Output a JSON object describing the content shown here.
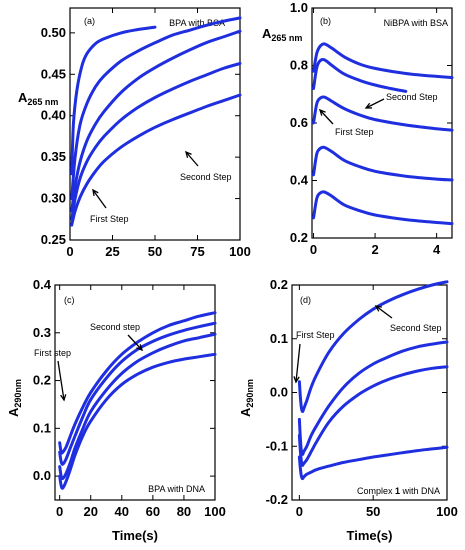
{
  "colors": {
    "series": "#1f2fe0",
    "axis": "#000000"
  },
  "chart_data": [
    {
      "id": "a",
      "type": "line",
      "panel_label": "(a)",
      "title": "BPA with BSA",
      "xlabel": "",
      "ylabel": "A 265 nm",
      "ylabel_main": "A",
      "ylabel_sub": "265 nm",
      "xlim": [
        0,
        100
      ],
      "ylim": [
        0.25,
        0.53
      ],
      "xticks": [
        0,
        25,
        50,
        75,
        100
      ],
      "yticks": [
        0.25,
        0.3,
        0.35,
        0.4,
        0.45,
        0.5
      ],
      "ytick_labels": [
        "0.25",
        "0.30",
        "0.35",
        "0.40",
        "0.45",
        "0.50"
      ],
      "series": [
        {
          "x": [
            1,
            2,
            4,
            7,
            10,
            15,
            20,
            30,
            40,
            50
          ],
          "y": [
            0.33,
            0.39,
            0.43,
            0.46,
            0.475,
            0.487,
            0.493,
            0.5,
            0.504,
            0.507
          ]
        },
        {
          "x": [
            1,
            3,
            6,
            10,
            15,
            20,
            30,
            40,
            50,
            60,
            70,
            80,
            90,
            100
          ],
          "y": [
            0.3,
            0.35,
            0.39,
            0.415,
            0.435,
            0.448,
            0.466,
            0.478,
            0.488,
            0.497,
            0.503,
            0.509,
            0.514,
            0.518
          ]
        },
        {
          "x": [
            1,
            3,
            6,
            10,
            15,
            20,
            30,
            40,
            50,
            60,
            70,
            80,
            90,
            100
          ],
          "y": [
            0.285,
            0.315,
            0.345,
            0.37,
            0.39,
            0.405,
            0.428,
            0.445,
            0.458,
            0.469,
            0.479,
            0.488,
            0.495,
            0.502
          ]
        },
        {
          "x": [
            1,
            3,
            6,
            10,
            15,
            20,
            30,
            40,
            50,
            60,
            70,
            80,
            90,
            100
          ],
          "y": [
            0.275,
            0.3,
            0.325,
            0.345,
            0.362,
            0.375,
            0.395,
            0.41,
            0.422,
            0.432,
            0.441,
            0.449,
            0.457,
            0.463
          ]
        },
        {
          "x": [
            1,
            3,
            6,
            10,
            15,
            20,
            30,
            40,
            50,
            60,
            70,
            80,
            90,
            100
          ],
          "y": [
            0.268,
            0.285,
            0.302,
            0.318,
            0.333,
            0.345,
            0.362,
            0.375,
            0.386,
            0.395,
            0.403,
            0.411,
            0.418,
            0.425
          ]
        }
      ],
      "annotations": [
        {
          "text": "First Step",
          "x": 16,
          "y": 0.278
        },
        {
          "text": "Second Step",
          "x": 80,
          "y": 0.373
        }
      ]
    },
    {
      "id": "b",
      "type": "line",
      "panel_label": "(b)",
      "title": "NiBPA  with BSA",
      "xlabel": "",
      "ylabel": "A 265 nm",
      "ylabel_main": "A",
      "ylabel_sub": "265 nm",
      "xlim": [
        -0.05,
        4.5
      ],
      "ylim": [
        0.2,
        1.0
      ],
      "xticks": [
        0,
        2,
        4
      ],
      "yticks": [
        0.2,
        0.4,
        0.6,
        0.8,
        1.0
      ],
      "ytick_labels": [
        "0.2",
        "0.4",
        "0.6",
        "0.8",
        "1.0"
      ],
      "series": [
        {
          "x": [
            0,
            0.1,
            0.2,
            0.35,
            0.6,
            1,
            1.5,
            2,
            3,
            4,
            4.5
          ],
          "y": [
            0.78,
            0.84,
            0.865,
            0.875,
            0.86,
            0.83,
            0.805,
            0.79,
            0.772,
            0.762,
            0.758
          ]
        },
        {
          "x": [
            0,
            0.1,
            0.2,
            0.35,
            0.6,
            1,
            1.5,
            2,
            2.5,
            3
          ],
          "y": [
            0.72,
            0.79,
            0.815,
            0.82,
            0.8,
            0.77,
            0.748,
            0.732,
            0.72,
            0.71
          ]
        },
        {
          "x": [
            0,
            0.1,
            0.2,
            0.35,
            0.6,
            1,
            1.5,
            2,
            3,
            4,
            4.5
          ],
          "y": [
            0.6,
            0.665,
            0.685,
            0.69,
            0.675,
            0.65,
            0.628,
            0.612,
            0.593,
            0.58,
            0.575
          ]
        },
        {
          "x": [
            0,
            0.1,
            0.2,
            0.35,
            0.6,
            1,
            1.5,
            2,
            3,
            4,
            4.5
          ],
          "y": [
            0.42,
            0.49,
            0.51,
            0.515,
            0.5,
            0.47,
            0.448,
            0.432,
            0.415,
            0.405,
            0.402
          ]
        },
        {
          "x": [
            0,
            0.1,
            0.2,
            0.35,
            0.6,
            1,
            1.5,
            2,
            3,
            4,
            4.5
          ],
          "y": [
            0.27,
            0.335,
            0.355,
            0.36,
            0.345,
            0.315,
            0.295,
            0.28,
            0.264,
            0.254,
            0.25
          ]
        }
      ],
      "annotations": [
        {
          "text": "First Step",
          "x": 0.35,
          "y": 0.67
        },
        {
          "text": "Second Step",
          "x": 3.2,
          "y": 0.66
        }
      ]
    },
    {
      "id": "c",
      "type": "line",
      "panel_label": "(c)",
      "title": "BPA with DNA",
      "xlabel": "Time(s)",
      "ylabel": "A290nm",
      "ylabel_main": "A",
      "ylabel_sub": "290nm",
      "xlim": [
        -3,
        100
      ],
      "ylim": [
        -0.05,
        0.4
      ],
      "xticks": [
        0,
        20,
        40,
        60,
        80,
        100
      ],
      "yticks": [
        0.0,
        0.1,
        0.2,
        0.3,
        0.4
      ],
      "ytick_labels": [
        "0.0",
        "0.1",
        "0.2",
        "0.3",
        "0.4"
      ],
      "series": [
        {
          "x": [
            0,
            1,
            2,
            4,
            7,
            10,
            15,
            20,
            30,
            40,
            50,
            60,
            70,
            80,
            90,
            100
          ],
          "y": [
            0.07,
            0.05,
            0.05,
            0.06,
            0.085,
            0.11,
            0.145,
            0.175,
            0.22,
            0.255,
            0.28,
            0.3,
            0.315,
            0.325,
            0.335,
            0.342
          ]
        },
        {
          "x": [
            0,
            1,
            2,
            4,
            7,
            10,
            15,
            20,
            30,
            40,
            50,
            60,
            70,
            80,
            90,
            100
          ],
          "y": [
            0.05,
            0.03,
            0.025,
            0.035,
            0.06,
            0.085,
            0.125,
            0.16,
            0.205,
            0.24,
            0.265,
            0.282,
            0.295,
            0.305,
            0.313,
            0.32
          ]
        },
        {
          "x": [
            0,
            1,
            2,
            4,
            7,
            10,
            15,
            20,
            30,
            40,
            50,
            60,
            70,
            80,
            90,
            100
          ],
          "y": [
            0.02,
            0.0,
            -0.005,
            0.005,
            0.03,
            0.06,
            0.1,
            0.135,
            0.18,
            0.215,
            0.24,
            0.258,
            0.272,
            0.283,
            0.29,
            0.297
          ]
        },
        {
          "x": [
            0,
            1,
            2,
            4,
            7,
            10,
            15,
            20,
            30,
            40,
            50,
            60,
            70,
            80,
            90,
            100
          ],
          "y": [
            0.0,
            -0.02,
            -0.025,
            -0.012,
            0.015,
            0.045,
            0.085,
            0.115,
            0.16,
            0.192,
            0.213,
            0.228,
            0.238,
            0.245,
            0.25,
            0.255
          ]
        }
      ],
      "annotations": [
        {
          "text": "First step",
          "x": 1,
          "y": 0.07
        },
        {
          "text": "Second step",
          "x": 48,
          "y": 0.25
        }
      ]
    },
    {
      "id": "d",
      "type": "line",
      "panel_label": "(d)",
      "title": "",
      "caption_prefix": "Complex ",
      "caption_bold": "1",
      "caption_suffix": " with DNA",
      "xlabel": "Time(s)",
      "ylabel": "A290nm",
      "ylabel_main": "A",
      "ylabel_sub": "290nm",
      "xlim": [
        -5,
        100
      ],
      "ylim": [
        -0.2,
        0.2
      ],
      "xticks": [
        0,
        50,
        100
      ],
      "yticks": [
        -0.2,
        -0.1,
        0.0,
        0.1,
        0.2
      ],
      "ytick_labels": [
        "-0.2",
        "-0.1",
        "0.0",
        "0.1",
        "0.2"
      ],
      "series": [
        {
          "x": [
            0,
            1,
            2,
            3,
            5,
            8,
            12,
            20,
            30,
            40,
            50,
            60,
            70,
            80,
            90,
            100
          ],
          "y": [
            0.02,
            -0.02,
            -0.035,
            -0.03,
            -0.015,
            0.01,
            0.035,
            0.075,
            0.11,
            0.135,
            0.155,
            0.17,
            0.182,
            0.192,
            0.2,
            0.206
          ]
        },
        {
          "x": [
            0,
            1,
            2,
            3,
            5,
            8,
            12,
            20,
            30,
            40,
            50,
            60,
            70,
            80,
            90,
            100
          ],
          "y": [
            -0.05,
            -0.1,
            -0.115,
            -0.11,
            -0.1,
            -0.08,
            -0.06,
            -0.025,
            0.01,
            0.035,
            0.053,
            0.066,
            0.077,
            0.085,
            0.09,
            0.094
          ]
        },
        {
          "x": [
            0,
            1,
            2,
            3,
            5,
            8,
            12,
            20,
            30,
            40,
            50,
            60,
            70,
            80,
            90,
            100
          ],
          "y": [
            -0.08,
            -0.12,
            -0.135,
            -0.132,
            -0.125,
            -0.11,
            -0.09,
            -0.055,
            -0.025,
            -0.004,
            0.012,
            0.024,
            0.033,
            0.04,
            0.045,
            0.048
          ]
        },
        {
          "x": [
            0,
            1,
            2,
            3,
            5,
            8,
            12,
            20,
            30,
            40,
            50,
            60,
            70,
            80,
            90,
            100
          ],
          "y": [
            -0.12,
            -0.15,
            -0.16,
            -0.157,
            -0.152,
            -0.148,
            -0.143,
            -0.137,
            -0.13,
            -0.125,
            -0.12,
            -0.116,
            -0.112,
            -0.108,
            -0.105,
            -0.102
          ]
        }
      ],
      "annotations": [
        {
          "text": "First Step",
          "x": 2,
          "y": -0.035
        },
        {
          "text": "Second Step",
          "x": 55,
          "y": 0.155
        }
      ]
    }
  ]
}
